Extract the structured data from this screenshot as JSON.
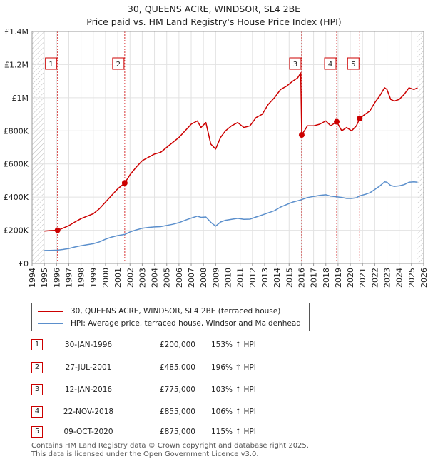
{
  "chart_data": {
    "type": "line",
    "title": "30, QUEENS ACRE, WINDSOR, SL4 2BE",
    "subtitle": "Price paid vs. HM Land Registry's House Price Index (HPI)",
    "xlim": [
      1994,
      2026
    ],
    "ylim": [
      0,
      1400000
    ],
    "x_ticks": [
      1994,
      1995,
      1996,
      1997,
      1998,
      1999,
      2000,
      2001,
      2002,
      2003,
      2004,
      2005,
      2006,
      2007,
      2008,
      2009,
      2010,
      2011,
      2012,
      2013,
      2014,
      2015,
      2016,
      2017,
      2018,
      2019,
      2020,
      2021,
      2022,
      2023,
      2024,
      2025,
      2026
    ],
    "y_ticks": [
      {
        "value": 0,
        "label": "£0"
      },
      {
        "value": 200000,
        "label": "£200K"
      },
      {
        "value": 400000,
        "label": "£400K"
      },
      {
        "value": 600000,
        "label": "£600K"
      },
      {
        "value": 800000,
        "label": "£800K"
      },
      {
        "value": 1000000,
        "label": "£1M"
      },
      {
        "value": 1200000,
        "label": "£1.2M"
      },
      {
        "value": 1400000,
        "label": "£1.4M"
      }
    ],
    "data_start": 1995.0,
    "data_end": 2025.5,
    "series": [
      {
        "name": "30, QUEENS ACRE, WINDSOR, SL4 2BE (terraced house)",
        "color": "#cc0000",
        "x": [
          1995.0,
          1995.5,
          1996.08,
          1996.5,
          1997.0,
          1997.5,
          1998.0,
          1998.5,
          1999.0,
          1999.5,
          2000.0,
          2000.5,
          2001.0,
          2001.57,
          2002.0,
          2002.5,
          2003.0,
          2003.5,
          2004.0,
          2004.5,
          2005.0,
          2005.5,
          2006.0,
          2006.5,
          2007.0,
          2007.5,
          2007.8,
          2008.2,
          2008.6,
          2009.0,
          2009.4,
          2009.8,
          2010.3,
          2010.8,
          2011.3,
          2011.8,
          2012.3,
          2012.8,
          2013.3,
          2013.8,
          2014.3,
          2014.8,
          2015.3,
          2015.7,
          2015.95,
          2016.03,
          2016.5,
          2017.0,
          2017.5,
          2018.0,
          2018.4,
          2018.89,
          2019.3,
          2019.7,
          2020.1,
          2020.5,
          2020.77,
          2021.2,
          2021.6,
          2022.0,
          2022.4,
          2022.8,
          2023.0,
          2023.3,
          2023.6,
          2024.0,
          2024.4,
          2024.8,
          2025.2,
          2025.5
        ],
        "y": [
          195000,
          198000,
          200000,
          212000,
          228000,
          250000,
          270000,
          285000,
          300000,
          330000,
          370000,
          410000,
          450000,
          485000,
          535000,
          580000,
          620000,
          640000,
          660000,
          670000,
          700000,
          730000,
          760000,
          800000,
          840000,
          860000,
          820000,
          850000,
          720000,
          690000,
          760000,
          800000,
          830000,
          850000,
          820000,
          830000,
          880000,
          900000,
          960000,
          1000000,
          1050000,
          1070000,
          1100000,
          1120000,
          1150000,
          775000,
          830000,
          830000,
          840000,
          860000,
          830000,
          855000,
          800000,
          820000,
          800000,
          830000,
          875000,
          900000,
          920000,
          970000,
          1010000,
          1060000,
          1050000,
          990000,
          980000,
          990000,
          1020000,
          1060000,
          1050000,
          1060000
        ]
      },
      {
        "name": "HPI: Average price, terraced house, Windsor and Maidenhead",
        "color": "#5b8fcc",
        "x": [
          1995.0,
          1995.5,
          1996.08,
          1996.5,
          1997.0,
          1997.5,
          1998.0,
          1998.5,
          1999.0,
          1999.5,
          2000.0,
          2000.5,
          2001.0,
          2001.57,
          2002.0,
          2002.5,
          2003.0,
          2003.5,
          2004.0,
          2004.5,
          2005.0,
          2005.5,
          2006.0,
          2006.5,
          2007.0,
          2007.5,
          2007.8,
          2008.2,
          2008.6,
          2009.0,
          2009.4,
          2009.8,
          2010.3,
          2010.8,
          2011.3,
          2011.8,
          2012.3,
          2012.8,
          2013.3,
          2013.8,
          2014.3,
          2014.8,
          2015.3,
          2015.7,
          2015.95,
          2016.03,
          2016.5,
          2017.0,
          2017.5,
          2018.0,
          2018.4,
          2018.89,
          2019.3,
          2019.7,
          2020.1,
          2020.5,
          2020.77,
          2021.2,
          2021.6,
          2022.0,
          2022.4,
          2022.8,
          2023.0,
          2023.3,
          2023.6,
          2024.0,
          2024.4,
          2024.8,
          2025.2,
          2025.5
        ],
        "y": [
          78000,
          79000,
          80000,
          84000,
          90000,
          99000,
          107000,
          113000,
          119000,
          130000,
          146000,
          159000,
          168000,
          175000,
          190000,
          202000,
          212000,
          217000,
          220000,
          222000,
          229000,
          236000,
          246000,
          260000,
          273000,
          285000,
          278000,
          280000,
          248000,
          225000,
          250000,
          260000,
          266000,
          272000,
          266000,
          267000,
          280000,
          292000,
          305000,
          318000,
          340000,
          355000,
          370000,
          378000,
          383000,
          385000,
          397000,
          404000,
          410000,
          414000,
          406000,
          402000,
          398000,
          392000,
          392000,
          396000,
          408000,
          416000,
          426000,
          446000,
          466000,
          492000,
          490000,
          470000,
          465000,
          468000,
          475000,
          490000,
          492000,
          490000
        ]
      }
    ],
    "sales": [
      {
        "label": "1",
        "year": 1996.08,
        "price": 200000
      },
      {
        "label": "2",
        "year": 2001.57,
        "price": 485000
      },
      {
        "label": "3",
        "year": 2016.03,
        "price": 775000
      },
      {
        "label": "4",
        "year": 2018.89,
        "price": 855000
      },
      {
        "label": "5",
        "year": 2020.77,
        "price": 875000
      }
    ]
  },
  "legend": {
    "property": "30, QUEENS ACRE, WINDSOR, SL4 2BE (terraced house)",
    "hpi": "HPI: Average price, terraced house, Windsor and Maidenhead"
  },
  "colors": {
    "property": "#cc0000",
    "hpi": "#5b8fcc"
  },
  "table": [
    {
      "num": "1",
      "date": "30-JAN-1996",
      "price": "£200,000",
      "hpi": "153% ↑ HPI"
    },
    {
      "num": "2",
      "date": "27-JUL-2001",
      "price": "£485,000",
      "hpi": "196% ↑ HPI"
    },
    {
      "num": "3",
      "date": "12-JAN-2016",
      "price": "£775,000",
      "hpi": "103% ↑ HPI"
    },
    {
      "num": "4",
      "date": "22-NOV-2018",
      "price": "£855,000",
      "hpi": "106% ↑ HPI"
    },
    {
      "num": "5",
      "date": "09-OCT-2020",
      "price": "£875,000",
      "hpi": "115% ↑ HPI"
    }
  ],
  "footer": {
    "line1": "Contains HM Land Registry data © Crown copyright and database right 2025.",
    "line2": "This data is licensed under the Open Government Licence v3.0."
  }
}
